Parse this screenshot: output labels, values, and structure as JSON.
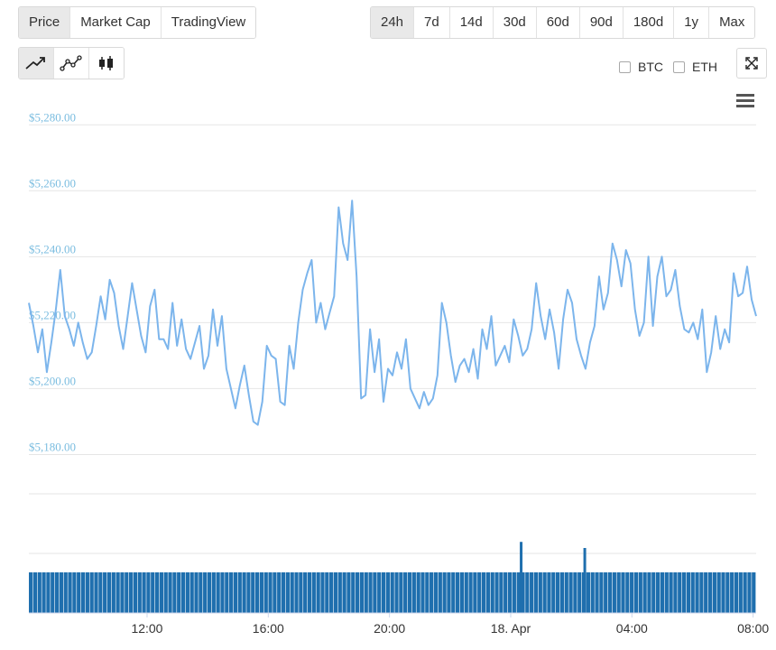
{
  "tabs_left": [
    {
      "label": "Price",
      "active": true
    },
    {
      "label": "Market Cap",
      "active": false
    },
    {
      "label": "TradingView",
      "active": false
    }
  ],
  "tabs_right": [
    {
      "label": "24h",
      "active": true
    },
    {
      "label": "7d",
      "active": false
    },
    {
      "label": "14d",
      "active": false
    },
    {
      "label": "30d",
      "active": false
    },
    {
      "label": "60d",
      "active": false
    },
    {
      "label": "90d",
      "active": false
    },
    {
      "label": "180d",
      "active": false
    },
    {
      "label": "1y",
      "active": false
    },
    {
      "label": "Max",
      "active": false
    }
  ],
  "chart_type_buttons": [
    {
      "icon": "line-chart-icon",
      "active": true
    },
    {
      "icon": "point-line-chart-icon",
      "active": false
    },
    {
      "icon": "candlestick-chart-icon",
      "active": false
    }
  ],
  "compare": {
    "btc_label": "BTC",
    "eth_label": "ETH",
    "btc_checked": false,
    "eth_checked": false
  },
  "colors": {
    "line": "#7cb5ec",
    "volume": "#1f6fae",
    "axis_label": "#7bbde0",
    "grid": "#e6e6e6"
  },
  "chart_data": {
    "type": "line",
    "title": "",
    "xlabel": "",
    "ylabel": "",
    "ylim": [
      5170,
      5285
    ],
    "y_ticks": [
      5180,
      5200,
      5220,
      5240,
      5260,
      5280
    ],
    "y_tick_labels": [
      "$5,180.00",
      "$5,200.00",
      "$5,220.00",
      "$5,240.00",
      "$5,260.00",
      "$5,280.00"
    ],
    "x_ticks": [
      "12:00",
      "16:00",
      "20:00",
      "18. Apr",
      "04:00",
      "08:00"
    ],
    "x_tick_hours": [
      12,
      16,
      20,
      24,
      28,
      32
    ],
    "x_start_hour": 8.1,
    "x_end_hour": 32.1,
    "price": [
      5226,
      5219,
      5211,
      5218,
      5205,
      5214,
      5224,
      5236,
      5222,
      5218,
      5213,
      5220,
      5214,
      5209,
      5211,
      5219,
      5228,
      5221,
      5233,
      5229,
      5219,
      5212,
      5222,
      5232,
      5224,
      5216,
      5211,
      5225,
      5230,
      5215,
      5215,
      5212,
      5226,
      5213,
      5221,
      5212,
      5209,
      5214,
      5219,
      5206,
      5210,
      5224,
      5213,
      5222,
      5206,
      5200,
      5194,
      5201,
      5207,
      5198,
      5190,
      5189,
      5196,
      5213,
      5210,
      5209,
      5196,
      5195,
      5213,
      5206,
      5220,
      5230,
      5235,
      5239,
      5220,
      5226,
      5218,
      5223,
      5228,
      5255,
      5244,
      5239,
      5257,
      5234,
      5197,
      5198,
      5218,
      5205,
      5215,
      5196,
      5206,
      5204,
      5211,
      5206,
      5215,
      5200,
      5197,
      5194,
      5199,
      5195,
      5197,
      5204,
      5226,
      5220,
      5210,
      5202,
      5207,
      5209,
      5205,
      5212,
      5203,
      5218,
      5212,
      5222,
      5207,
      5210,
      5213,
      5208,
      5221,
      5216,
      5210,
      5212,
      5218,
      5232,
      5222,
      5215,
      5224,
      5217,
      5206,
      5221,
      5230,
      5226,
      5215,
      5210,
      5206,
      5214,
      5219,
      5234,
      5224,
      5229,
      5244,
      5239,
      5231,
      5242,
      5238,
      5224,
      5216,
      5220,
      5240,
      5219,
      5234,
      5240,
      5228,
      5230,
      5236,
      5225,
      5218,
      5217,
      5220,
      5215,
      5224,
      5205,
      5211,
      5222,
      5212,
      5218,
      5214,
      5235,
      5228,
      5229,
      5237,
      5227,
      5222
    ],
    "volume_relative": [
      1.0,
      1.0,
      1.0,
      1.0,
      1.0,
      1.0,
      1.0,
      1.0,
      1.0,
      1.0,
      1.0,
      1.0,
      1.0,
      1.0,
      1.0,
      1.0,
      1.0,
      1.0,
      1.0,
      1.0,
      1.0,
      1.0,
      1.0,
      1.0,
      1.0,
      1.0,
      1.0,
      1.0,
      1.0,
      1.0,
      1.0,
      1.0,
      1.0,
      1.0,
      1.0,
      1.0,
      1.0,
      1.0,
      1.0,
      1.0,
      1.0,
      1.0,
      1.0,
      1.0,
      1.0,
      1.0,
      1.0,
      1.0,
      1.0,
      1.0,
      1.0,
      1.0,
      1.0,
      1.0,
      1.0,
      1.0,
      1.0,
      1.0,
      1.0,
      1.0,
      1.0,
      1.0,
      1.0,
      1.0,
      1.0,
      1.0,
      1.0,
      1.0,
      1.0,
      1.0,
      1.0,
      1.0,
      1.0,
      1.0,
      1.0,
      1.0,
      1.0,
      1.0,
      1.0,
      1.0,
      1.0,
      1.0,
      1.0,
      1.0,
      1.0,
      1.0,
      1.0,
      1.0,
      1.0,
      1.0,
      1.0,
      1.0,
      1.0,
      1.0,
      1.0,
      1.0,
      1.0,
      1.0,
      1.0,
      1.0,
      1.0,
      1.0,
      1.0,
      1.0,
      1.0,
      1.0,
      1.0,
      1.0,
      1.0,
      1.0,
      1.0,
      1.0,
      1.0,
      1.0,
      1.0,
      1.0,
      1.0,
      1.0,
      1.0,
      1.0,
      1.0,
      1.0,
      1.0,
      1.0,
      1.0,
      1.0,
      1.0,
      1.0,
      1.0,
      1.0,
      1.0,
      1.0,
      1.0,
      1.0,
      1.0,
      1.0,
      1.0,
      1.0,
      1.0,
      1.0,
      1.0,
      1.0,
      1.0,
      1.0,
      1.0,
      1.0,
      1.0,
      1.0,
      1.0,
      1.0,
      1.0,
      1.0,
      1.0,
      1.0,
      1.0,
      1.0,
      1.0,
      1.0,
      1.0,
      1.0,
      1.0,
      1.0,
      1.0,
      1.0,
      1.0,
      1.0,
      1.0
    ],
    "volume_spikes": [
      {
        "hour": 24.3,
        "relative": 1.75
      },
      {
        "hour": 26.4,
        "relative": 1.6
      }
    ],
    "grid": true,
    "legend": "none"
  }
}
